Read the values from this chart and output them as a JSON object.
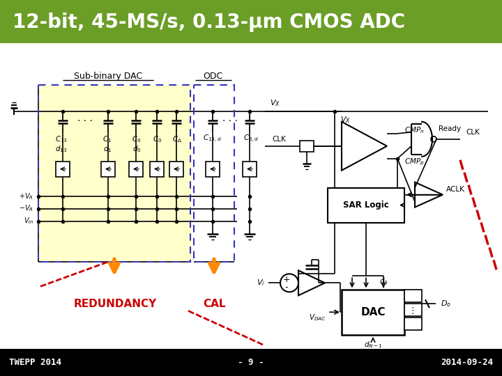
{
  "title": "12-bit, 45-MS/s, 0.13-μm CMOS ADC",
  "title_bg_color": "#6b9e27",
  "title_text_color": "#ffffff",
  "title_fontsize": 20,
  "footer_bg_color": "#000000",
  "footer_text_color": "#ffffff",
  "footer_left": "TWEPP 2014",
  "footer_center": "- 9 -",
  "footer_right": "2014-09-24",
  "footer_fontsize": 9,
  "main_bg_color": "#ffffff",
  "sub_binary_label": "Sub-binary DAC",
  "odc_label": "ODC",
  "redundancy_label": "REDUNDANCY",
  "cal_label": "CAL",
  "yellow_fill": "#ffffcc",
  "blue_dashed_color": "#3333bb",
  "orange_arrow_color": "#ff8800",
  "red_text_color": "#cc0000",
  "red_dashed_color": "#cc0000",
  "diagram_bg": "#ffffff"
}
